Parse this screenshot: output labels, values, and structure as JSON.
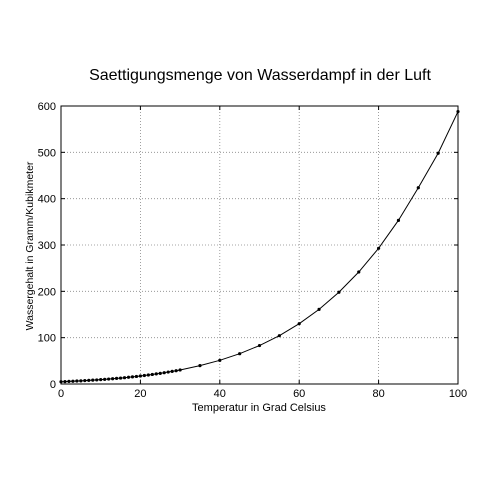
{
  "chart_data": {
    "type": "line",
    "title": "Saettigungsmenge von Wasserdampf in der Luft",
    "xlabel": "Temperatur in Grad Celsius",
    "ylabel": "Wassergehalt in Gramm/Kubikmeter",
    "xlim": [
      0,
      100
    ],
    "ylim": [
      0,
      600
    ],
    "xticks": [
      0,
      20,
      40,
      60,
      80,
      100
    ],
    "yticks": [
      0,
      100,
      200,
      300,
      400,
      500,
      600
    ],
    "grid": true,
    "series": [
      {
        "marker": "dot",
        "line": true,
        "x": [
          0,
          1,
          2,
          3,
          4,
          5,
          6,
          7,
          8,
          9,
          10,
          11,
          12,
          13,
          14,
          15,
          16,
          17,
          18,
          19,
          20,
          21,
          22,
          23,
          24,
          25,
          26,
          27,
          28,
          29,
          30,
          35,
          40,
          45,
          50,
          55,
          60,
          65,
          70,
          75,
          80,
          85,
          90,
          95,
          100
        ],
        "y": [
          4.8,
          5.2,
          5.6,
          6.0,
          6.4,
          6.8,
          7.3,
          7.8,
          8.3,
          8.8,
          9.4,
          10.0,
          10.7,
          11.4,
          12.1,
          12.8,
          13.6,
          14.5,
          15.4,
          16.3,
          17.3,
          18.3,
          19.4,
          20.6,
          21.8,
          23.0,
          24.4,
          25.8,
          27.2,
          28.7,
          30.3,
          39.6,
          51.1,
          65.4,
          83.0,
          104.3,
          130.2,
          161.1,
          198.1,
          241.7,
          292.9,
          353.2,
          423.6,
          498.0,
          588.0
        ]
      }
    ]
  }
}
